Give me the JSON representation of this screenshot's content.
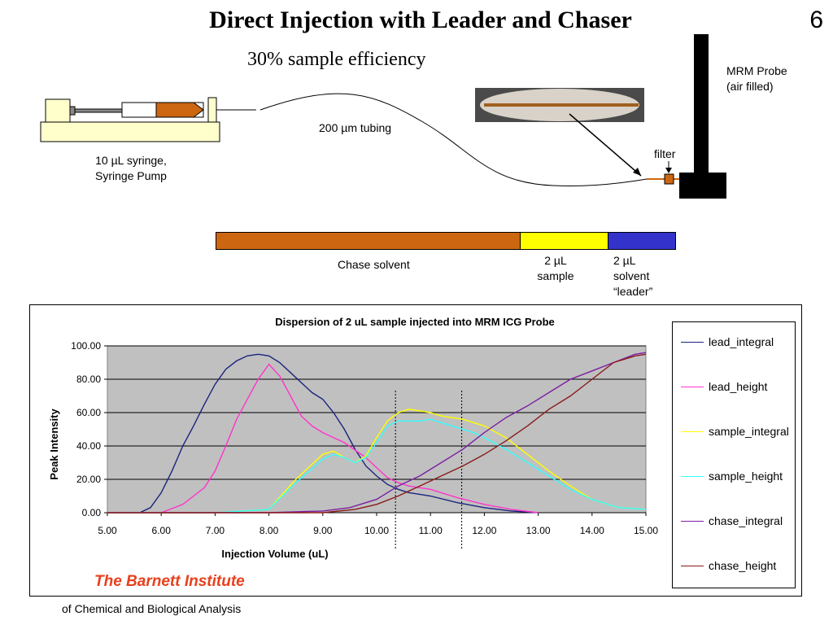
{
  "slide": {
    "title": "Direct Injection with Leader and Chaser",
    "number": "6",
    "efficiency": "30% sample efficiency"
  },
  "schematic": {
    "syringe_label_line1": "10 µL syringe,",
    "syringe_label_line2": "Syringe Pump",
    "tubing_label": "200 µm tubing",
    "probe_label_line1": "MRM Probe",
    "probe_label_line2": "(air filled)",
    "filter_label": "filter",
    "colors": {
      "chase": "#cc6611",
      "sample": "#ffff00",
      "leader": "#3333cc",
      "syringe_body": "#ffffcc",
      "probe": "#000000"
    }
  },
  "segments": [
    {
      "label": "Chase solvent",
      "color": "#cc6611",
      "fraction": 0.664
    },
    {
      "label_line1": "2 µL",
      "label_line2": "sample",
      "color": "#ffff00",
      "fraction": 0.19
    },
    {
      "label_line1": "2 µL",
      "label_line2": "solvent",
      "label_line3": "“leader”",
      "color": "#3333cc",
      "fraction": 0.146
    }
  ],
  "institute": {
    "name": "The Barnett Institute",
    "subtitle": "of Chemical and Biological Analysis"
  },
  "chart_data": {
    "type": "line",
    "title": "Dispersion of 2 uL sample injected into MRM ICG Probe",
    "xlabel": "Injection Volume (uL)",
    "ylabel": "Peak Intensity",
    "xlim": [
      5,
      15
    ],
    "ylim": [
      0,
      100
    ],
    "xticks": [
      "5.00",
      "6.00",
      "7.00",
      "8.00",
      "9.00",
      "10.00",
      "11.00",
      "12.00",
      "13.00",
      "14.00",
      "15.00"
    ],
    "yticks": [
      "0.00",
      "20.00",
      "40.00",
      "60.00",
      "80.00",
      "100.00"
    ],
    "grid": "horizontal",
    "plot_background": "#c0c0c0",
    "legend_position": "right",
    "vlines": [
      10.35,
      11.58
    ],
    "series": [
      {
        "name": "lead_integral",
        "color": "#1a237e",
        "x": [
          5.0,
          5.6,
          5.8,
          6.0,
          6.2,
          6.4,
          6.6,
          6.8,
          7.0,
          7.2,
          7.4,
          7.6,
          7.8,
          8.0,
          8.2,
          8.4,
          8.6,
          8.8,
          9.0,
          9.2,
          9.4,
          9.6,
          9.8,
          10.0,
          10.2,
          10.4,
          10.6,
          10.8,
          11.0,
          11.5,
          12.0,
          12.5,
          13.0
        ],
        "y": [
          0,
          0,
          3,
          12,
          25,
          40,
          52,
          65,
          77,
          86,
          91,
          94,
          95,
          94,
          90,
          84,
          78,
          72,
          68,
          60,
          50,
          38,
          28,
          22,
          17,
          14,
          12,
          11,
          10,
          6,
          3,
          1,
          0
        ]
      },
      {
        "name": "lead_height",
        "color": "#ff33cc",
        "x": [
          5.0,
          6.0,
          6.4,
          6.8,
          7.0,
          7.2,
          7.4,
          7.6,
          7.8,
          8.0,
          8.2,
          8.4,
          8.6,
          8.8,
          9.0,
          9.4,
          9.8,
          10.0,
          10.2,
          10.4,
          10.6,
          10.8,
          11.0,
          11.5,
          12.0,
          12.5,
          13.0
        ],
        "y": [
          0,
          0,
          5,
          15,
          25,
          40,
          56,
          68,
          80,
          89,
          82,
          70,
          58,
          52,
          48,
          42,
          33,
          27,
          21,
          18,
          16,
          15,
          14,
          9,
          5,
          2,
          0
        ]
      },
      {
        "name": "sample_integral",
        "color": "#ffff00",
        "x": [
          5.0,
          7.0,
          8.0,
          8.5,
          9.0,
          9.2,
          9.4,
          9.6,
          9.8,
          10.0,
          10.2,
          10.4,
          10.6,
          10.8,
          11.0,
          11.2,
          11.4,
          11.6,
          11.8,
          12.0,
          12.4,
          12.8,
          13.2,
          13.6,
          14.0,
          14.5,
          15.0
        ],
        "y": [
          0,
          0,
          2,
          20,
          35,
          37,
          33,
          30,
          34,
          45,
          55,
          60,
          62,
          61,
          60,
          58,
          57,
          56,
          54,
          52,
          45,
          35,
          25,
          16,
          8,
          3,
          2
        ]
      },
      {
        "name": "sample_height",
        "color": "#33ffff",
        "x": [
          5.0,
          7.0,
          8.0,
          8.5,
          9.0,
          9.2,
          9.4,
          9.6,
          9.8,
          10.0,
          10.2,
          10.4,
          10.6,
          10.8,
          11.0,
          11.2,
          11.4,
          11.6,
          11.8,
          12.0,
          12.4,
          12.8,
          13.2,
          13.6,
          14.0,
          14.5,
          15.0
        ],
        "y": [
          0,
          0,
          2,
          18,
          32,
          35,
          33,
          30,
          33,
          42,
          52,
          55,
          55,
          55,
          56,
          54,
          52,
          50,
          48,
          45,
          38,
          30,
          22,
          14,
          8,
          3,
          2
        ]
      },
      {
        "name": "chase_integral",
        "color": "#7b1fa2",
        "x": [
          5.0,
          8.0,
          9.0,
          9.5,
          10.0,
          10.4,
          10.8,
          11.2,
          11.6,
          12.0,
          12.4,
          12.8,
          13.2,
          13.6,
          14.0,
          14.4,
          14.8,
          15.0
        ],
        "y": [
          0,
          0,
          1,
          3,
          8,
          16,
          22,
          30,
          38,
          48,
          57,
          64,
          72,
          80,
          85,
          90,
          95,
          96
        ]
      },
      {
        "name": "chase_height",
        "color": "#8b1a1a",
        "x": [
          5.0,
          9.0,
          9.6,
          10.0,
          10.4,
          10.8,
          11.2,
          11.6,
          12.0,
          12.4,
          12.8,
          13.2,
          13.6,
          14.0,
          14.4,
          14.8,
          15.0
        ],
        "y": [
          0,
          0,
          2,
          5,
          10,
          16,
          22,
          28,
          35,
          43,
          52,
          62,
          70,
          80,
          90,
          94,
          95
        ]
      }
    ]
  }
}
